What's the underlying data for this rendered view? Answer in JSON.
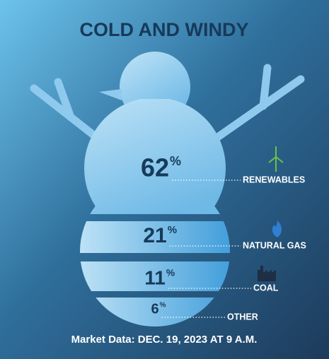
{
  "chart_data": {
    "type": "snowman",
    "title": "COLD AND WINDY",
    "categories": [
      "RENEWABLES",
      "NATURAL GAS",
      "COAL",
      "OTHER"
    ],
    "values": [
      62,
      21,
      11,
      6
    ],
    "value_unit": "%",
    "footer": "Market Data: DEC. 19, 2023 AT 9 A.M."
  }
}
